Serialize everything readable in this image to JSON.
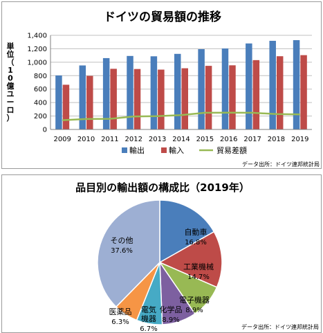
{
  "colors": {
    "export": "#4a7ebb",
    "import": "#be4b48",
    "balance": "#98b954",
    "grid": "#bfbfbf",
    "axis": "#7f7f7f"
  },
  "chart_data": [
    {
      "type": "bar",
      "title": "ドイツの貿易額の推移",
      "ylabel": "単位（10億ユーロ）",
      "ylim": [
        0,
        1400
      ],
      "yticks": [
        "0",
        "200",
        "400",
        "600",
        "800",
        "1,000",
        "1,200",
        "1,400"
      ],
      "categories": [
        "2009",
        "2010",
        "2011",
        "2012",
        "2013",
        "2014",
        "2015",
        "2016",
        "2017",
        "2018",
        "2019"
      ],
      "series": [
        {
          "name": "輸出",
          "type": "bar",
          "values": [
            803,
            952,
            1061,
            1093,
            1088,
            1124,
            1194,
            1204,
            1279,
            1318,
            1328
          ]
        },
        {
          "name": "輸入",
          "type": "bar",
          "values": [
            665,
            797,
            902,
            899,
            890,
            910,
            946,
            954,
            1031,
            1089,
            1105
          ]
        },
        {
          "name": "貿易差額",
          "type": "line",
          "values": [
            138,
            155,
            159,
            194,
            198,
            214,
            248,
            250,
            248,
            229,
            223
          ]
        }
      ],
      "grid": true,
      "legend": "bottom",
      "source": "データ出所：ドイツ連邦統計局"
    },
    {
      "type": "pie",
      "title": "品目別の輸出額の構成比（2019年）",
      "slices": [
        {
          "label": "自動車",
          "value": 16.8,
          "text": "16.8%",
          "color": "#4a7ebb"
        },
        {
          "label": "工業機械",
          "value": 14.7,
          "text": "14.7%",
          "color": "#be4b48"
        },
        {
          "label": "電子機器",
          "value": 8.9,
          "text": "8.9%",
          "color": "#98b954"
        },
        {
          "label": "化学品",
          "value": 8.9,
          "text": "8.9%",
          "color": "#7d60a0"
        },
        {
          "label": "電気機器",
          "value": 6.7,
          "text": "6.7%",
          "color": "#46aac5"
        },
        {
          "label": "医薬品",
          "value": 6.3,
          "text": "6.3%",
          "color": "#f69545"
        },
        {
          "label": "その他",
          "value": 37.6,
          "text": "37.6%",
          "color": "#9dafd3"
        }
      ],
      "source": "データ出所：ドイツ連邦統計局"
    }
  ]
}
